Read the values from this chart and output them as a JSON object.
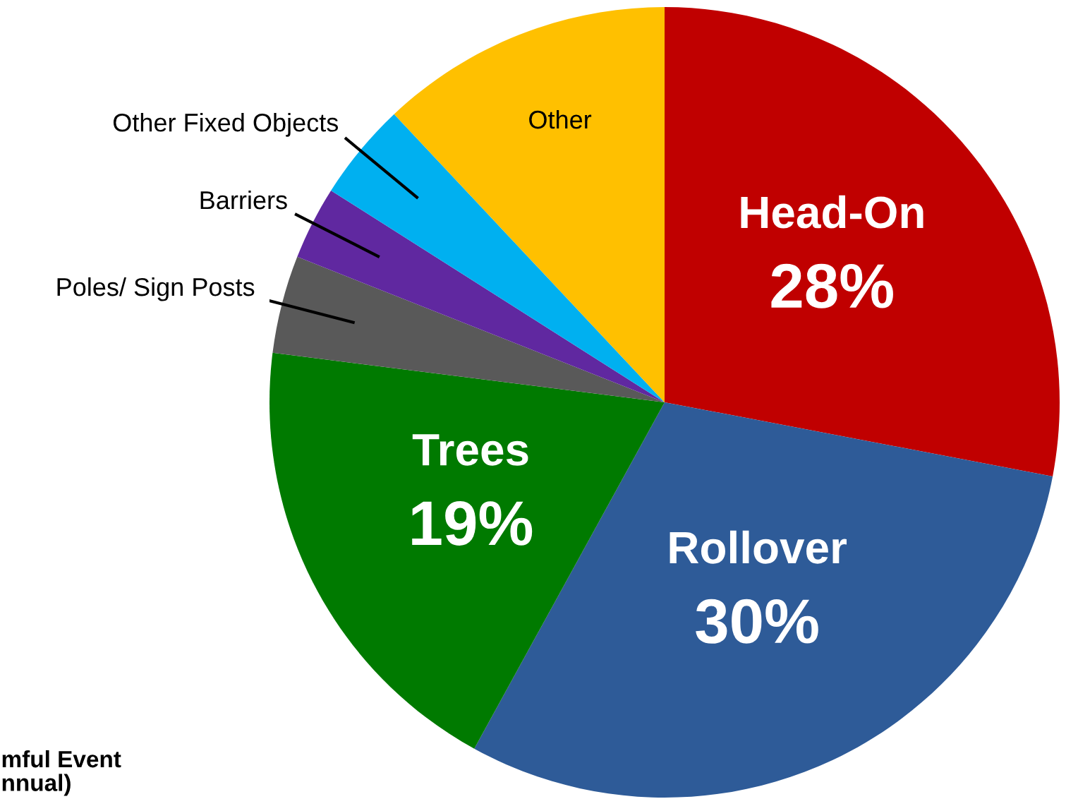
{
  "chart_data": {
    "type": "pie",
    "categories": [
      "Head-On",
      "Rollover",
      "Trees",
      "Poles/ Sign Posts",
      "Barriers",
      "Other Fixed Objects",
      "Other"
    ],
    "values": [
      28,
      30,
      19,
      4,
      3,
      4,
      12
    ],
    "colors": [
      "#c00000",
      "#2e5b98",
      "#007a00",
      "#595959",
      "#6028a0",
      "#00b0f0",
      "#ffc000"
    ],
    "value_labels": [
      "28%",
      "30%",
      "19%",
      null,
      null,
      null,
      null
    ],
    "annotations": [
      "mful Event\nnnual)"
    ]
  }
}
